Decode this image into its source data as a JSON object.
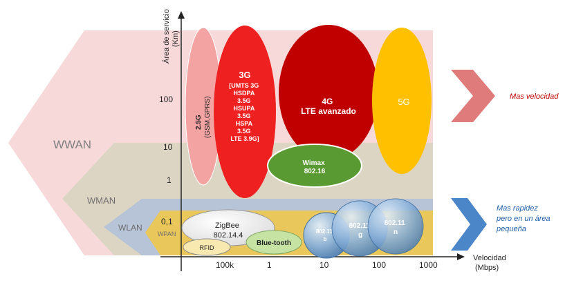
{
  "axes": {
    "y_title_line1": "Área de servicio",
    "y_title_line2": "(Km)",
    "x_title_line1": "Velocidad",
    "x_title_line2": "(Mbps)",
    "y_ticks": [
      "100",
      "10",
      "1",
      "0,1"
    ],
    "x_ticks": [
      "100k",
      "1",
      "10",
      "100",
      "1000"
    ]
  },
  "bands": {
    "wwan": "WWAN",
    "wman": "WMAN",
    "wlan": "WLAN",
    "wpan": "WPAN"
  },
  "technologies": {
    "g25_line1": "2.5G",
    "g25_line2": "(GSM,GPRS)",
    "g3_title": "3G",
    "g3_lines": [
      "[UMTS 3G",
      "HSDPA",
      "3.5G",
      "HSUPA",
      "3.5G",
      "HSPA",
      "3.5G",
      "LTE 3.9G]"
    ],
    "g4_line1": "4G",
    "g4_line2": "LTE avanzado",
    "g5": "5G",
    "wimax_line1": "Wimax",
    "wimax_line2": "802.16",
    "zigbee_line1": "ZigBee",
    "zigbee_line2": "802.14.4",
    "rfid": "RFID",
    "bluetooth": "Blue-tooth",
    "wifi_b_line1": "802.11",
    "wifi_b_line2": "b",
    "wifi_g_line1": "802.11",
    "wifi_g_line2": "g",
    "wifi_n_line1": "802.11",
    "wifi_n_line2": "n"
  },
  "annotations": {
    "mas_velocidad": "Mas velocidad",
    "mas_rapidez_lines": [
      "Mas rapidez",
      "pero en un área",
      "pequeña"
    ]
  },
  "colors": {
    "wwan_band": "#f7d9da",
    "wman_band": "#ddd5c4",
    "wlan_band": "#b7c3d6",
    "wpan_band": "#e9c75a",
    "g25": "#f4a3a3",
    "g3": "#ee2020",
    "g4": "#c00000",
    "g5": "#ffc000",
    "wimax": "#5a9a32",
    "bluetooth": "#c6e3a4",
    "wifi": "#8eb4dc",
    "arrow_red": "#e07b7b",
    "arrow_blue": "#4a86c8",
    "mas_velocidad_text": "#c00000",
    "mas_rapidez_text": "#1f5fa8"
  }
}
